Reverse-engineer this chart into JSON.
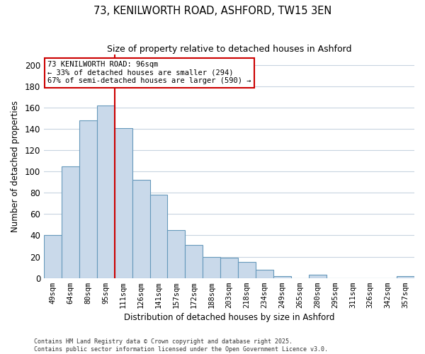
{
  "title": "73, KENILWORTH ROAD, ASHFORD, TW15 3EN",
  "subtitle": "Size of property relative to detached houses in Ashford",
  "xlabel": "Distribution of detached houses by size in Ashford",
  "ylabel": "Number of detached properties",
  "bar_labels": [
    "49sqm",
    "64sqm",
    "80sqm",
    "95sqm",
    "111sqm",
    "126sqm",
    "141sqm",
    "157sqm",
    "172sqm",
    "188sqm",
    "203sqm",
    "218sqm",
    "234sqm",
    "249sqm",
    "265sqm",
    "280sqm",
    "295sqm",
    "311sqm",
    "326sqm",
    "342sqm",
    "357sqm"
  ],
  "bar_values": [
    40,
    105,
    148,
    162,
    141,
    92,
    78,
    45,
    31,
    20,
    19,
    15,
    8,
    2,
    0,
    3,
    0,
    0,
    0,
    0,
    2
  ],
  "bar_color": "#c9d9ea",
  "bar_edge_color": "#6699bb",
  "ylim": [
    0,
    210
  ],
  "yticks": [
    0,
    20,
    40,
    60,
    80,
    100,
    120,
    140,
    160,
    180,
    200
  ],
  "vline_bar_index": 3,
  "vline_color": "#cc0000",
  "annotation_title": "73 KENILWORTH ROAD: 96sqm",
  "annotation_line1": "← 33% of detached houses are smaller (294)",
  "annotation_line2": "67% of semi-detached houses are larger (590) →",
  "annotation_box_color": "#ffffff",
  "annotation_box_edge": "#cc0000",
  "footnote1": "Contains HM Land Registry data © Crown copyright and database right 2025.",
  "footnote2": "Contains public sector information licensed under the Open Government Licence v3.0.",
  "background_color": "#ffffff",
  "grid_color": "#c8d4e0"
}
